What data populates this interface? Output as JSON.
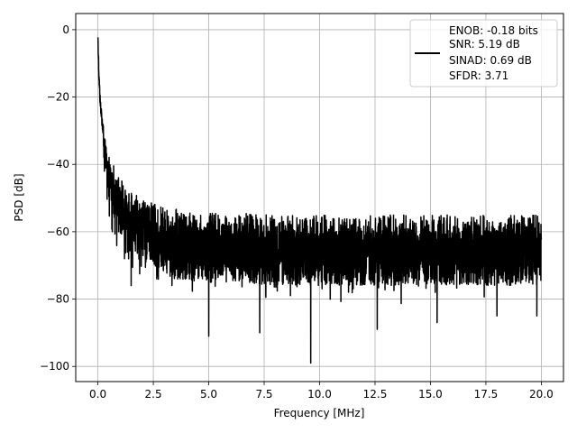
{
  "chart_data": {
    "type": "line",
    "title": "",
    "xlabel": "Frequency [MHz]",
    "ylabel": "PSD [dB]",
    "xlim": [
      -1.0,
      21.0
    ],
    "ylim": [
      -104.5,
      4.8
    ],
    "x_ticks": [
      0.0,
      2.5,
      5.0,
      7.5,
      10.0,
      12.5,
      15.0,
      17.5,
      20.0
    ],
    "x_tick_labels": [
      "0.0",
      "2.5",
      "5.0",
      "7.5",
      "10.0",
      "12.5",
      "15.0",
      "17.5",
      "20.0"
    ],
    "y_ticks": [
      0,
      -20,
      -40,
      -60,
      -80,
      -100
    ],
    "y_tick_labels": [
      "0",
      "−20",
      "−40",
      "−60",
      "−80",
      "−100"
    ],
    "grid": true,
    "legend_position": "top-right",
    "series": [
      {
        "name": "",
        "color": "#000000",
        "legend_lines": [
          "ENOB: -0.18 bits",
          "SNR: 5.19 dB",
          "SINAD: 0.69 dB",
          "SFDR: 3.71"
        ],
        "envelope": {
          "x": [
            0.0,
            0.05,
            0.1,
            0.2,
            0.3,
            0.4,
            0.5,
            0.7,
            1.0,
            1.5,
            2.0,
            3.0,
            5.0,
            8.0,
            12.0,
            16.0,
            20.0
          ],
          "y": [
            0,
            -12,
            -19,
            -26,
            -31,
            -35,
            -38,
            -42,
            -46,
            -50,
            -52,
            -55,
            -56,
            -57,
            -57,
            -57,
            -57
          ]
        },
        "noise_floor_mean": -60,
        "noise_floor_upper": -47,
        "notable_dips": [
          {
            "x": 0.65,
            "y": -60
          },
          {
            "x": 1.2,
            "y": -68
          },
          {
            "x": 1.5,
            "y": -76
          },
          {
            "x": 5.0,
            "y": -91
          },
          {
            "x": 7.3,
            "y": -90
          },
          {
            "x": 9.6,
            "y": -99
          },
          {
            "x": 12.6,
            "y": -89
          },
          {
            "x": 15.3,
            "y": -87
          },
          {
            "x": 18.0,
            "y": -85
          },
          {
            "x": 19.8,
            "y": -85
          }
        ]
      }
    ]
  }
}
